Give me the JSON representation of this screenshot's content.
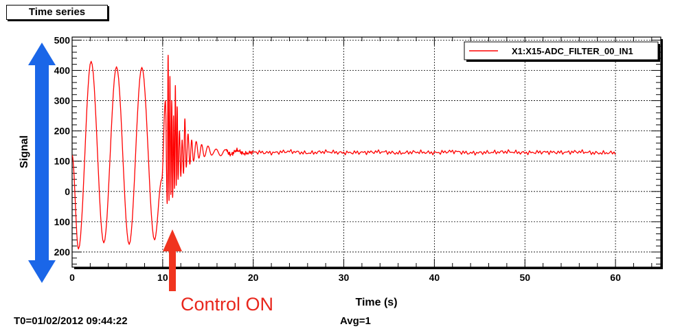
{
  "window": {
    "title": "Time series"
  },
  "footer": {
    "t0": "T0=01/02/2012 09:44:22",
    "avg": "Avg=1"
  },
  "annotations": {
    "control_on": "Control ON"
  },
  "colors": {
    "series": "#ff0000",
    "arrow_blue": "#1a66e8",
    "arrow_red": "#f0341f",
    "text_red": "#e8261c"
  },
  "chart_data": {
    "type": "line",
    "xlabel": "Time (s)",
    "ylabel": "Signal",
    "xlim": [
      0,
      65
    ],
    "ylim": [
      -250,
      510
    ],
    "x_ticks": [
      0,
      10,
      20,
      30,
      40,
      50,
      60
    ],
    "x_tick_labels": [
      "0",
      "10",
      "20",
      "30",
      "40",
      "50",
      "60"
    ],
    "y_ticks": [
      -200,
      -100,
      0,
      100,
      200,
      300,
      400,
      500
    ],
    "y_tick_labels": [
      "200",
      "100",
      "0",
      "100",
      "200",
      "300",
      "400",
      "500"
    ],
    "grid": true,
    "legend": {
      "position": "top-right"
    },
    "series": [
      {
        "name": "X1:X15-ADC_FILTER_00_IN1",
        "x": [
          0,
          0.7,
          2.1,
          3.5,
          4.9,
          6.3,
          7.7,
          9.1,
          9.9,
          10.3,
          10.5,
          10.6,
          10.7,
          10.8,
          10.9,
          11.0,
          11.1,
          11.2,
          11.3,
          11.4,
          11.5,
          11.6,
          11.7,
          11.85,
          12.0,
          12.15,
          12.3,
          12.45,
          12.6,
          12.8,
          13.0,
          13.2,
          13.4,
          13.7,
          14.0,
          14.3,
          14.6,
          15.0,
          15.4,
          15.9,
          16.4,
          16.9,
          17.5,
          18.2,
          19.0,
          20,
          22,
          24,
          26,
          28,
          30,
          32,
          34,
          36,
          38,
          40,
          42,
          44,
          46,
          48,
          50,
          52,
          54,
          56,
          58,
          60
        ],
        "y": [
          120,
          -190,
          430,
          -170,
          412,
          -175,
          410,
          -160,
          40,
          300,
          -40,
          450,
          -30,
          380,
          -10,
          300,
          -20,
          250,
          10,
          350,
          20,
          280,
          40,
          200,
          50,
          170,
          60,
          240,
          80,
          190,
          90,
          170,
          100,
          165,
          110,
          155,
          115,
          150,
          120,
          140,
          118,
          138,
          122,
          136,
          125,
          130,
          128,
          132,
          127,
          131,
          128,
          129,
          131,
          127,
          130,
          128,
          132,
          127,
          129,
          131,
          128,
          130,
          129,
          131,
          127,
          128
        ]
      }
    ]
  }
}
